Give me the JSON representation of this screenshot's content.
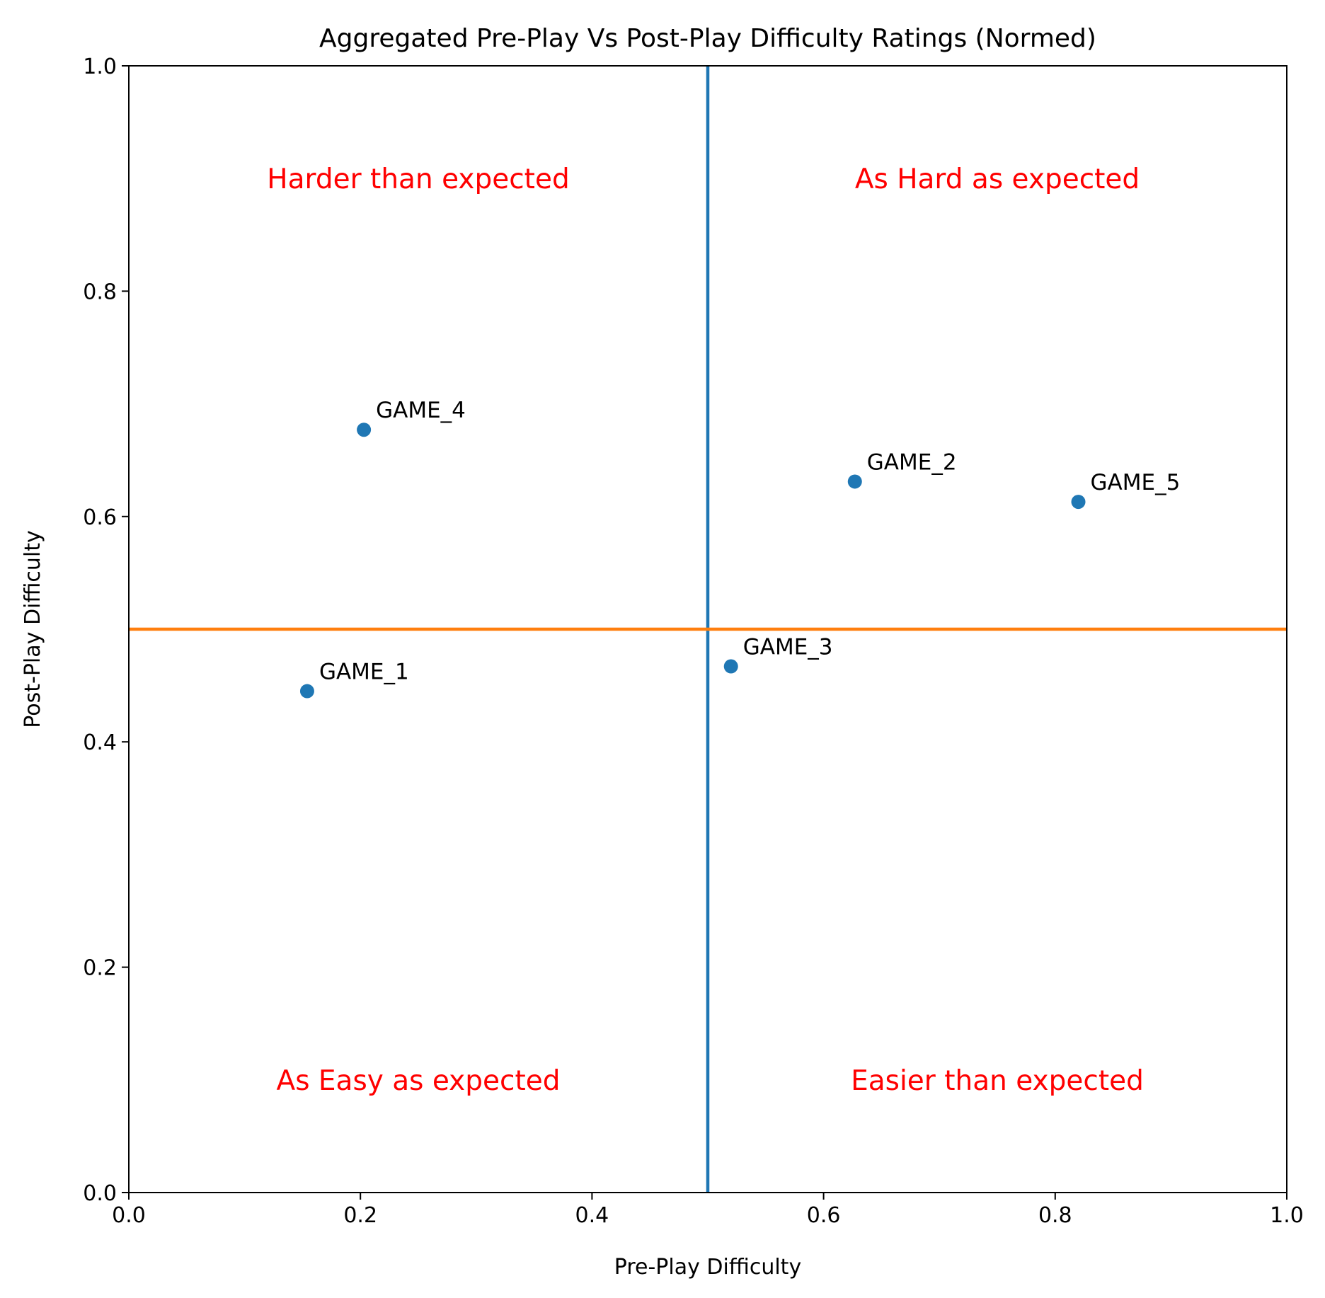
{
  "chart_data": {
    "type": "scatter",
    "title": "Aggregated Pre-Play Vs Post-Play Difficulty Ratings (Normed)",
    "xlabel": "Pre-Play Difficulty",
    "ylabel": "Post-Play Difficulty",
    "xlim": [
      0,
      1
    ],
    "ylim": [
      0,
      1
    ],
    "x_ticks": [
      "0.0",
      "0.2",
      "0.4",
      "0.6",
      "0.8",
      "1.0"
    ],
    "y_ticks": [
      "0.0",
      "0.2",
      "0.4",
      "0.6",
      "0.8",
      "1.0"
    ],
    "grid": false,
    "points": [
      {
        "label": "GAME_1",
        "x": 0.154,
        "y": 0.445
      },
      {
        "label": "GAME_2",
        "x": 0.627,
        "y": 0.631
      },
      {
        "label": "GAME_3",
        "x": 0.52,
        "y": 0.467
      },
      {
        "label": "GAME_4",
        "x": 0.203,
        "y": 0.677
      },
      {
        "label": "GAME_5",
        "x": 0.82,
        "y": 0.613
      }
    ],
    "reference_lines": [
      {
        "orientation": "vertical",
        "value": 0.5,
        "color": "#1f77b4"
      },
      {
        "orientation": "horizontal",
        "value": 0.5,
        "color": "#ff7f0e"
      }
    ],
    "quadrant_labels": [
      {
        "text": "Harder than expected",
        "x": 0.25,
        "y": 0.9
      },
      {
        "text": "As Hard as expected",
        "x": 0.75,
        "y": 0.9
      },
      {
        "text": "As Easy as expected",
        "x": 0.25,
        "y": 0.1
      },
      {
        "text": "Easier than expected",
        "x": 0.75,
        "y": 0.1
      }
    ],
    "colors": {
      "points": "#1f77b4",
      "quadrant_text": "#ff0000",
      "axes": "#000000"
    }
  }
}
